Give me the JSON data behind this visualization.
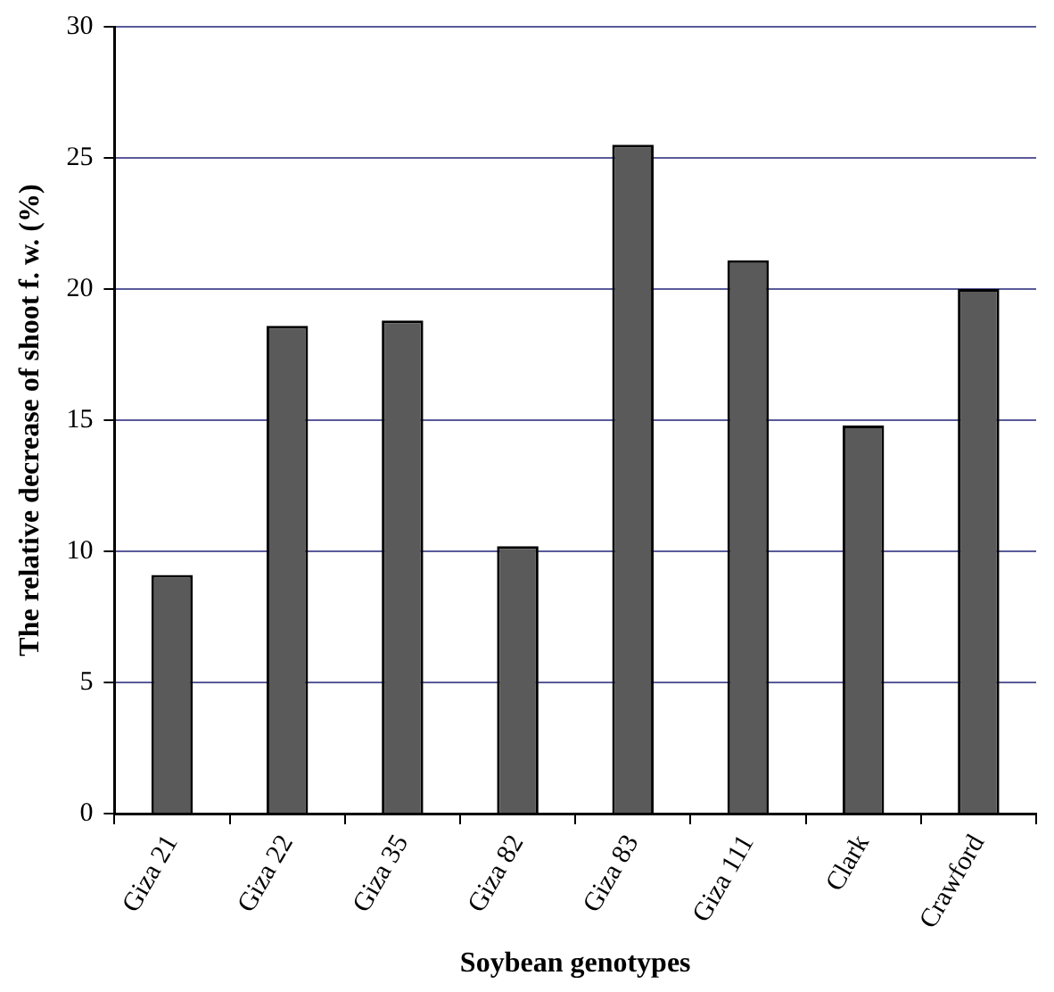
{
  "chart_data": {
    "type": "bar",
    "xlabel": "Soybean genotypes",
    "ylabel": "The relative decrease of shoot f. w. (%)",
    "categories": [
      "Giza 21",
      "Giza 22",
      "Giza 35",
      "Giza 82",
      "Giza 83",
      "Giza 111",
      "Clark",
      "Crawford"
    ],
    "values": [
      9.1,
      18.6,
      18.8,
      10.2,
      25.5,
      21.1,
      14.8,
      20.0
    ],
    "color": "#5a5a5a",
    "ylim": [
      0,
      30
    ],
    "yticks": [
      0,
      5,
      10,
      15,
      20,
      25,
      30
    ],
    "grid": "y",
    "legend": false
  }
}
